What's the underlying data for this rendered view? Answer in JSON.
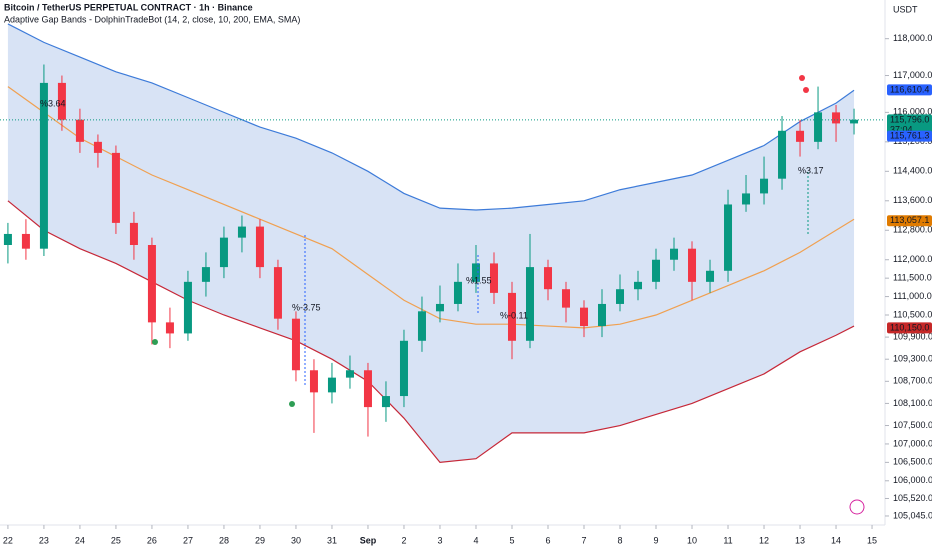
{
  "chart_data": {
    "type": "candlestick",
    "title": "Bitcoin / TetherUS PERPETUAL CONTRACT · 1h · Binance",
    "subtitle": "Adaptive Gap Bands - DolphinTradeBot (14, 2, close, 10, 200, EMA, SMA)",
    "currency": "USDT",
    "x": [
      0,
      0.5,
      1,
      1.5,
      2,
      2.5,
      3,
      3.5,
      4,
      4.5,
      5,
      5.5,
      6,
      6.5,
      7,
      7.5,
      8,
      8.5,
      9,
      9.5,
      10,
      10.5,
      11,
      11.5,
      12,
      12.5,
      13,
      13.5,
      14,
      14.5,
      15,
      15.5,
      16,
      16.5,
      17,
      17.5,
      18,
      18.5,
      19,
      19.5,
      20,
      20.5,
      21,
      21.5,
      22,
      22.5,
      23,
      23.5
    ],
    "open": [
      112400,
      112700,
      112300,
      116800,
      115800,
      115200,
      114900,
      113000,
      112400,
      110300,
      110000,
      111400,
      111800,
      112600,
      112900,
      111800,
      110400,
      109000,
      108400,
      108800,
      109000,
      108000,
      108300,
      109800,
      110600,
      110800,
      111400,
      111900,
      111100,
      109800,
      111800,
      111200,
      110700,
      110200,
      110800,
      111200,
      111400,
      112000,
      112300,
      111400,
      111700,
      113500,
      113800,
      114200,
      115500,
      115200,
      116000,
      115700
    ],
    "high": [
      113000,
      113100,
      117300,
      117000,
      116100,
      115400,
      115100,
      113300,
      112600,
      110700,
      111700,
      112200,
      112900,
      113200,
      113100,
      112000,
      110600,
      109300,
      109200,
      109400,
      109200,
      108700,
      110100,
      111000,
      111300,
      111900,
      112400,
      112200,
      111400,
      112700,
      112000,
      111400,
      110900,
      111200,
      111600,
      111700,
      112300,
      112600,
      112500,
      112000,
      113900,
      114300,
      114800,
      115900,
      115800,
      116700,
      116200,
      116100
    ],
    "low": [
      111900,
      112000,
      112100,
      115500,
      114900,
      114500,
      112700,
      112000,
      109700,
      109600,
      109800,
      111000,
      111500,
      112200,
      111500,
      110100,
      108700,
      107300,
      108100,
      108500,
      107200,
      107600,
      108000,
      109500,
      110300,
      110600,
      111100,
      110800,
      109300,
      109600,
      110900,
      110300,
      109900,
      109900,
      110600,
      110900,
      111200,
      111700,
      110900,
      111100,
      111400,
      113300,
      113500,
      113900,
      114800,
      115000,
      115200,
      115400
    ],
    "close": [
      112700,
      112300,
      116800,
      115800,
      115200,
      114900,
      113000,
      112400,
      110300,
      110000,
      111400,
      111800,
      112600,
      112900,
      111800,
      110400,
      109000,
      108400,
      108800,
      109000,
      108000,
      108300,
      109800,
      110600,
      110800,
      111400,
      111900,
      111100,
      109800,
      111800,
      111200,
      110700,
      110200,
      110800,
      111200,
      111400,
      112000,
      112300,
      111400,
      111700,
      113500,
      113800,
      114200,
      115500,
      115200,
      116000,
      115700,
      115800
    ],
    "up_color": "#089981",
    "down_color": "#f23645",
    "band_x": [
      0,
      1,
      2,
      3,
      4,
      5,
      6,
      7,
      8,
      9,
      10,
      11,
      12,
      13,
      14,
      15,
      16,
      17,
      18,
      19,
      20,
      21,
      22,
      23,
      23.5
    ],
    "bands": [
      {
        "color": "#3d7bd9",
        "values": [
          118400,
          117900,
          117500,
          117100,
          116800,
          116400,
          116000,
          115600,
          115300,
          114900,
          114400,
          113800,
          113400,
          113350,
          113400,
          113500,
          113600,
          113900,
          114100,
          114300,
          114700,
          115100,
          115750,
          116250,
          116600
        ]
      },
      {
        "color": "#f0a050",
        "values": [
          116700,
          116000,
          115300,
          114800,
          114300,
          113900,
          113500,
          113100,
          112700,
          112300,
          111600,
          110900,
          110400,
          110250,
          110250,
          110200,
          110150,
          110250,
          110500,
          110900,
          111300,
          111700,
          112200,
          112800,
          113100
        ]
      },
      {
        "color": "#c62838",
        "values": [
          113600,
          112800,
          112300,
          111900,
          111400,
          110900,
          110500,
          110150,
          109800,
          109300,
          108700,
          107700,
          106500,
          106600,
          107300,
          107300,
          107300,
          107500,
          107800,
          108100,
          108500,
          108900,
          109500,
          109950,
          110200
        ]
      }
    ],
    "band_fill": "#d8e3f5",
    "xlim": [
      -0.22,
      24.36
    ],
    "ylim": [
      104800,
      119050
    ],
    "xticks": [
      {
        "value": 0,
        "label": "22"
      },
      {
        "value": 1,
        "label": "23"
      },
      {
        "value": 2,
        "label": "24"
      },
      {
        "value": 3,
        "label": "25"
      },
      {
        "value": 4,
        "label": "26"
      },
      {
        "value": 5,
        "label": "27"
      },
      {
        "value": 6,
        "label": "28"
      },
      {
        "value": 7,
        "label": "29"
      },
      {
        "value": 8,
        "label": "30"
      },
      {
        "value": 9,
        "label": "31"
      },
      {
        "value": 10,
        "label": "Sep"
      },
      {
        "value": 11,
        "label": "2"
      },
      {
        "value": 12,
        "label": "3"
      },
      {
        "value": 13,
        "label": "4"
      },
      {
        "value": 14,
        "label": "5"
      },
      {
        "value": 15,
        "label": "6"
      },
      {
        "value": 16,
        "label": "7"
      },
      {
        "value": 17,
        "label": "8"
      },
      {
        "value": 18,
        "label": "9"
      },
      {
        "value": 19,
        "label": "10"
      },
      {
        "value": 20,
        "label": "11"
      },
      {
        "value": 21,
        "label": "12"
      },
      {
        "value": 22,
        "label": "13"
      },
      {
        "value": 23,
        "label": "14"
      },
      {
        "value": 24,
        "label": "15"
      }
    ],
    "yticks": [
      {
        "value": 118000,
        "label": "118,000.0"
      },
      {
        "value": 117000,
        "label": "117,000.0"
      },
      {
        "value": 116000,
        "label": "116,000.0"
      },
      {
        "value": 115200,
        "label": "115,200.0"
      },
      {
        "value": 114400,
        "label": "114,400.0"
      },
      {
        "value": 113600,
        "label": "113,600.0"
      },
      {
        "value": 112800,
        "label": "112,800.0"
      },
      {
        "value": 112000,
        "label": "112,000.0"
      },
      {
        "value": 111500,
        "label": "111,500.0"
      },
      {
        "value": 111000,
        "label": "111,000.0"
      },
      {
        "value": 110500,
        "label": "110,500.0"
      },
      {
        "value": 109900,
        "label": "109,900.0"
      },
      {
        "value": 109300,
        "label": "109,300.0"
      },
      {
        "value": 108700,
        "label": "108,700.0"
      },
      {
        "value": 108100,
        "label": "108,100.0"
      },
      {
        "value": 107500,
        "label": "107,500.0"
      },
      {
        "value": 107000,
        "label": "107,000.0"
      },
      {
        "value": 106500,
        "label": "106,500.0"
      },
      {
        "value": 106000,
        "label": "106,000.0"
      },
      {
        "value": 105520,
        "label": "105,520.0"
      },
      {
        "value": 105045,
        "label": "105,045.0"
      }
    ],
    "price_labels": [
      {
        "value": 116610.4,
        "label": "116,610.4",
        "color": "#2962ff"
      },
      {
        "value": 115796,
        "label": "115,796.0",
        "color": "#089981"
      },
      {
        "value": 115761.3,
        "label": "115,761.3",
        "color": "#2962ff"
      },
      {
        "value": 113057.1,
        "label": "113,057.1",
        "color": "#e07b00"
      },
      {
        "value": 110150,
        "label": "110,150.0",
        "color": "#c62828"
      }
    ],
    "countdown": "37:04",
    "annotations": [
      "%3.64",
      "%-3.75",
      "%1.55",
      "%-0.11",
      "%3.17"
    ]
  }
}
